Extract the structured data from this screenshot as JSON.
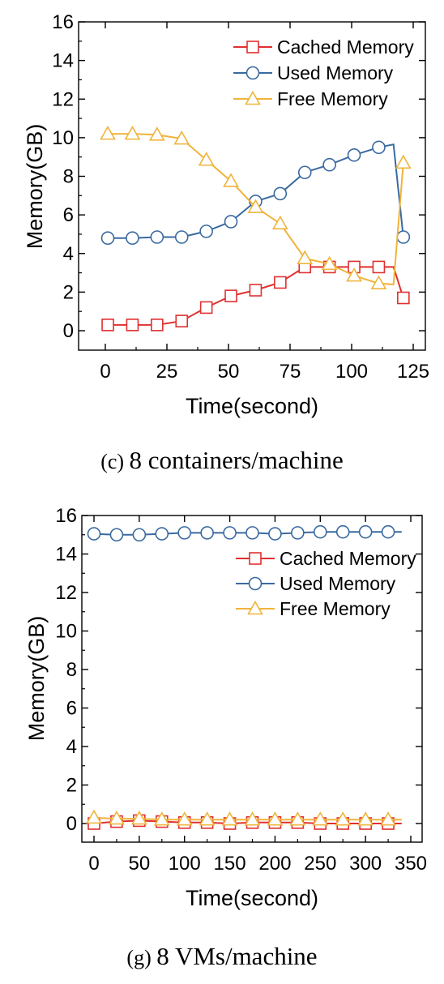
{
  "chart_data": [
    {
      "type": "line",
      "caption_label": "(c)",
      "caption_text": "8 containers/machine",
      "xlabel": "Time(second)",
      "ylabel": "Memory(GB)",
      "xlim": [
        -10,
        130
      ],
      "ylim": [
        -1,
        16
      ],
      "xticks": [
        0,
        25,
        50,
        75,
        100,
        125
      ],
      "yticks": [
        0,
        2,
        4,
        6,
        8,
        10,
        12,
        14,
        16
      ],
      "grid": false,
      "legend_position": "top-right",
      "series": [
        {
          "name": "Cached Memory",
          "color": "#e03030",
          "marker": "square",
          "x": [
            1,
            11,
            21,
            31,
            41,
            51,
            61,
            71,
            81,
            91,
            101,
            111,
            117,
            121
          ],
          "y": [
            0.3,
            0.3,
            0.3,
            0.5,
            1.2,
            1.8,
            2.1,
            2.5,
            3.3,
            3.3,
            3.3,
            3.3,
            3.3,
            1.7
          ],
          "marker_x": [
            1,
            11,
            21,
            31,
            41,
            51,
            61,
            71,
            81,
            91,
            101,
            111,
            121
          ],
          "marker_y": [
            0.3,
            0.3,
            0.3,
            0.5,
            1.2,
            1.8,
            2.1,
            2.5,
            3.3,
            3.3,
            3.3,
            3.3,
            1.7
          ]
        },
        {
          "name": "Used Memory",
          "color": "#3a6aa0",
          "marker": "circle",
          "x": [
            1,
            11,
            21,
            31,
            41,
            51,
            61,
            71,
            81,
            91,
            101,
            111,
            117,
            121
          ],
          "y": [
            4.8,
            4.8,
            4.85,
            4.85,
            5.15,
            5.65,
            6.7,
            7.1,
            8.2,
            8.6,
            9.1,
            9.5,
            9.65,
            4.85
          ],
          "marker_x": [
            1,
            11,
            21,
            31,
            41,
            51,
            61,
            71,
            81,
            91,
            101,
            111,
            121
          ],
          "marker_y": [
            4.8,
            4.8,
            4.85,
            4.85,
            5.15,
            5.65,
            6.7,
            7.1,
            8.2,
            8.6,
            9.1,
            9.5,
            4.85
          ]
        },
        {
          "name": "Free Memory",
          "color": "#f0b43c",
          "marker": "triangle",
          "x": [
            1,
            11,
            21,
            31,
            41,
            51,
            61,
            71,
            81,
            91,
            101,
            111,
            117,
            121
          ],
          "y": [
            10.2,
            10.2,
            10.15,
            9.95,
            8.85,
            7.75,
            6.4,
            5.55,
            3.75,
            3.45,
            2.85,
            2.45,
            2.4,
            8.7
          ],
          "marker_x": [
            1,
            11,
            21,
            31,
            41,
            51,
            61,
            71,
            81,
            91,
            101,
            111,
            121
          ],
          "marker_y": [
            10.2,
            10.2,
            10.15,
            9.95,
            8.85,
            7.75,
            6.4,
            5.55,
            3.75,
            3.45,
            2.85,
            2.45,
            8.7
          ]
        }
      ]
    },
    {
      "type": "line",
      "caption_label": "(g)",
      "caption_text": "8 VMs/machine",
      "xlabel": "Time(second)",
      "ylabel": "Memory(GB)",
      "xlim": [
        -12,
        355
      ],
      "ylim": [
        -1,
        16
      ],
      "xticks": [
        0,
        50,
        100,
        150,
        200,
        250,
        300,
        350
      ],
      "yticks": [
        0,
        2,
        4,
        6,
        8,
        10,
        12,
        14,
        16
      ],
      "grid": false,
      "legend_position": "top-right",
      "series": [
        {
          "name": "Cached Memory",
          "color": "#e03030",
          "marker": "square",
          "x": [
            0,
            25,
            50,
            75,
            100,
            125,
            150,
            175,
            200,
            225,
            250,
            275,
            300,
            325,
            340
          ],
          "y": [
            0.0,
            0.1,
            0.15,
            0.1,
            0.05,
            0.05,
            0.0,
            0.05,
            0.05,
            0.05,
            0.0,
            0.0,
            0.0,
            0.0,
            0.0
          ],
          "marker_x": [
            0,
            25,
            50,
            75,
            100,
            125,
            150,
            175,
            200,
            225,
            250,
            275,
            300,
            325
          ],
          "marker_y": [
            0.0,
            0.1,
            0.15,
            0.1,
            0.05,
            0.05,
            0.0,
            0.05,
            0.05,
            0.05,
            0.0,
            0.0,
            0.0,
            0.0
          ]
        },
        {
          "name": "Used Memory",
          "color": "#3a6aa0",
          "marker": "circle",
          "x": [
            0,
            25,
            50,
            75,
            100,
            125,
            150,
            175,
            200,
            225,
            250,
            275,
            300,
            325,
            340
          ],
          "y": [
            15.05,
            15.0,
            15.0,
            15.05,
            15.1,
            15.1,
            15.1,
            15.1,
            15.05,
            15.1,
            15.15,
            15.15,
            15.15,
            15.15,
            15.15
          ],
          "marker_x": [
            0,
            25,
            50,
            75,
            100,
            125,
            150,
            175,
            200,
            225,
            250,
            275,
            300,
            325
          ],
          "marker_y": [
            15.05,
            15.0,
            15.0,
            15.05,
            15.1,
            15.1,
            15.1,
            15.1,
            15.05,
            15.1,
            15.15,
            15.15,
            15.15,
            15.15
          ]
        },
        {
          "name": "Free Memory",
          "color": "#f0b43c",
          "marker": "triangle",
          "x": [
            0,
            25,
            50,
            75,
            100,
            125,
            150,
            175,
            200,
            225,
            250,
            275,
            300,
            325,
            340
          ],
          "y": [
            0.3,
            0.25,
            0.25,
            0.2,
            0.2,
            0.2,
            0.2,
            0.2,
            0.2,
            0.2,
            0.2,
            0.2,
            0.2,
            0.2,
            0.2
          ],
          "marker_x": [
            0,
            25,
            50,
            75,
            100,
            125,
            150,
            175,
            200,
            225,
            250,
            275,
            300,
            325
          ],
          "marker_y": [
            0.3,
            0.25,
            0.25,
            0.2,
            0.2,
            0.2,
            0.2,
            0.2,
            0.2,
            0.2,
            0.2,
            0.2,
            0.2,
            0.2
          ]
        }
      ]
    }
  ]
}
